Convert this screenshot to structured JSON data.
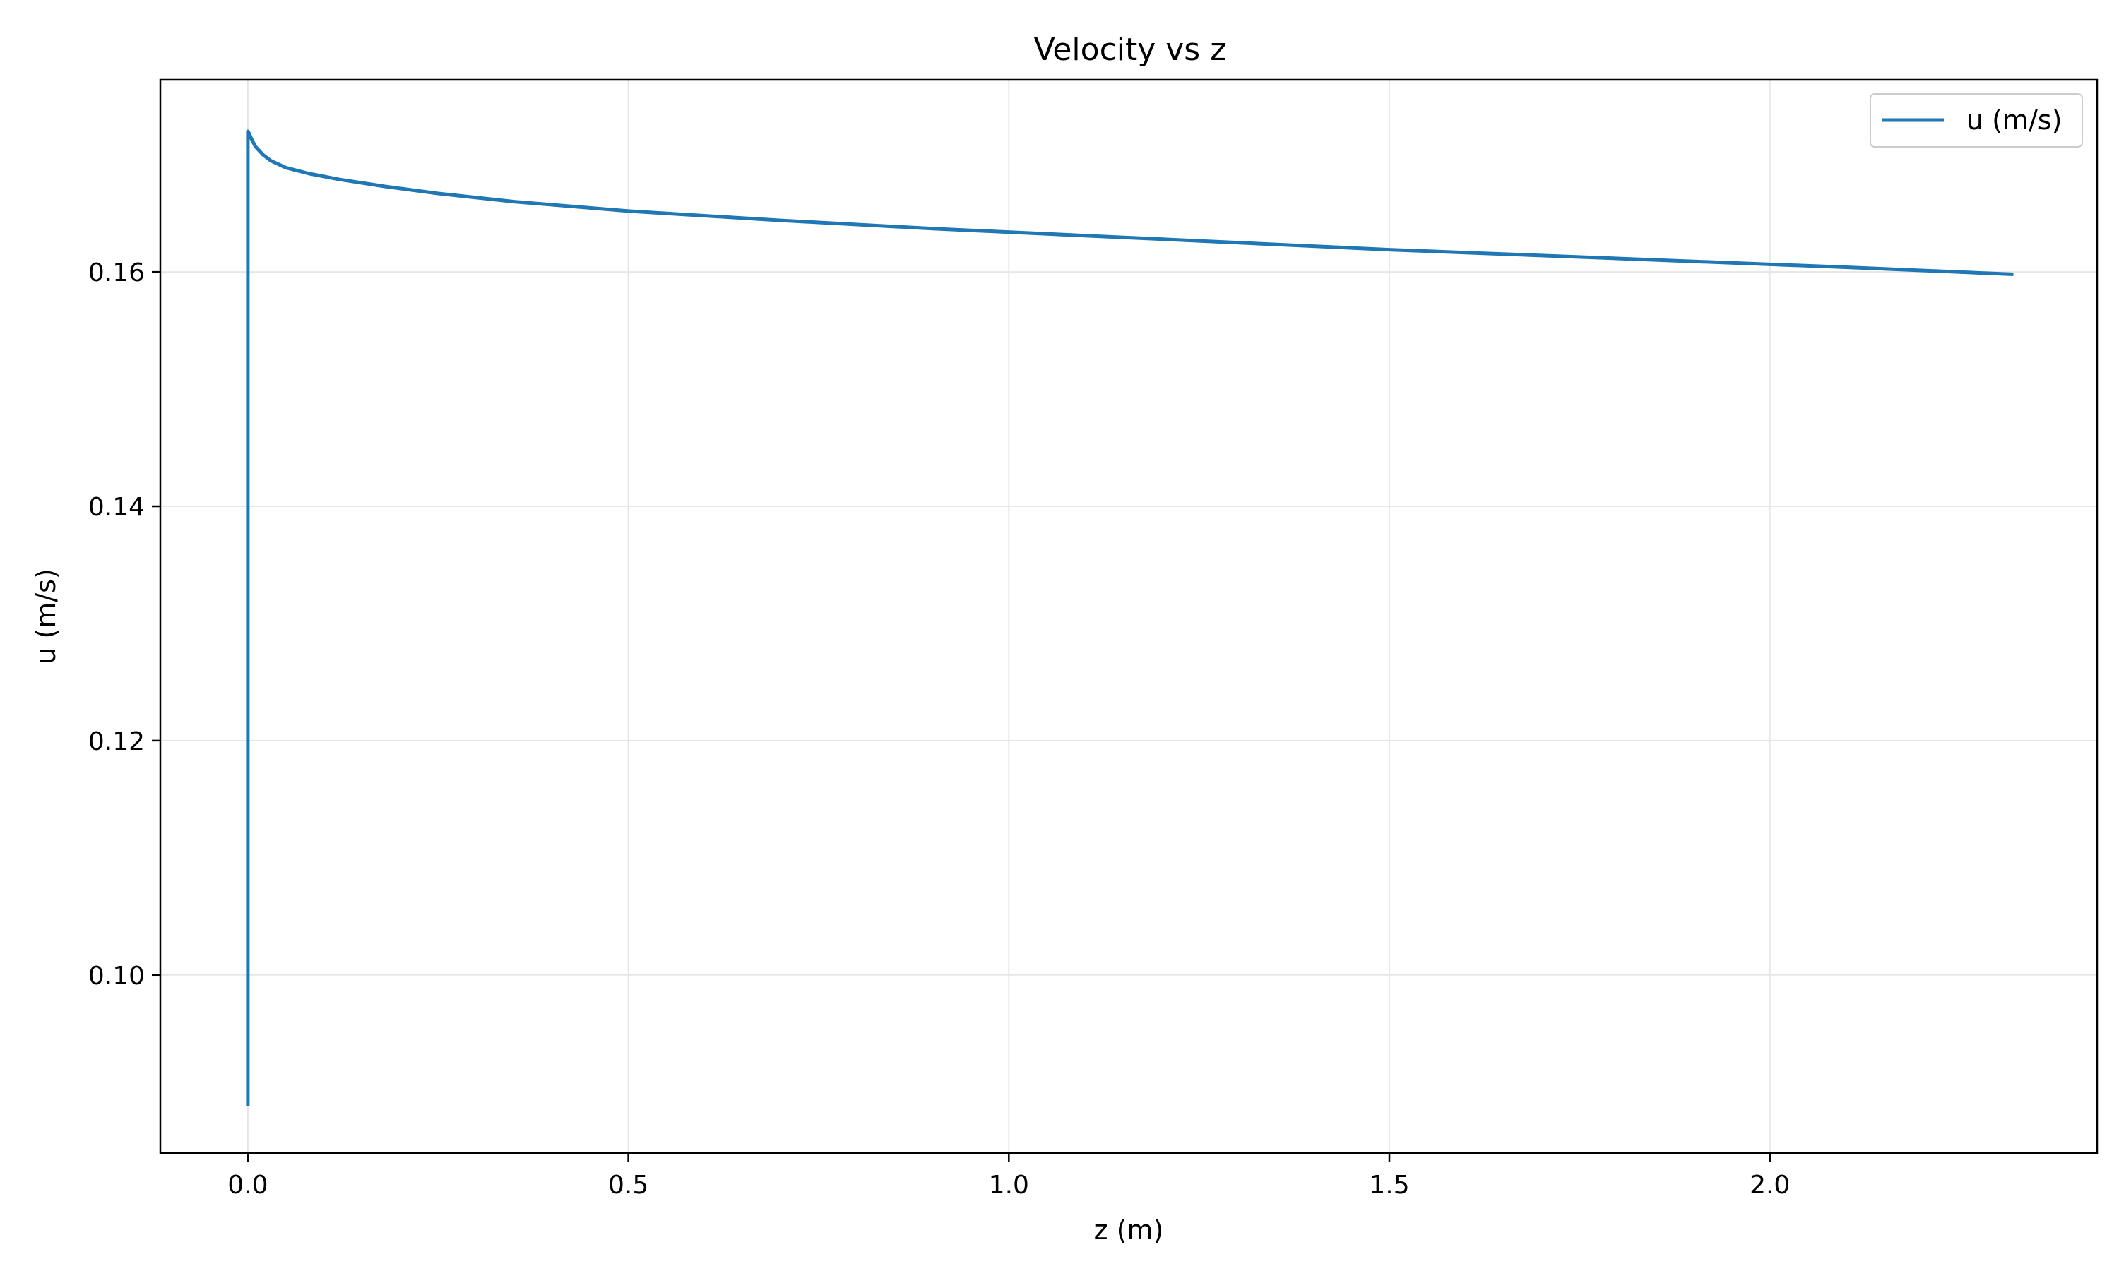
{
  "chart_data": {
    "type": "line",
    "title": "Velocity vs z",
    "xlabel": "z (m)",
    "ylabel": "u (m/s)",
    "xlim": [
      -0.115,
      2.43
    ],
    "ylim": [
      0.0848,
      0.1764
    ],
    "xticks": [
      {
        "value": 0.0,
        "label": "0.0"
      },
      {
        "value": 0.5,
        "label": "0.5"
      },
      {
        "value": 1.0,
        "label": "1.0"
      },
      {
        "value": 1.5,
        "label": "1.5"
      },
      {
        "value": 2.0,
        "label": "2.0"
      }
    ],
    "yticks": [
      {
        "value": 0.1,
        "label": "0.10"
      },
      {
        "value": 0.12,
        "label": "0.12"
      },
      {
        "value": 0.14,
        "label": "0.14"
      },
      {
        "value": 0.16,
        "label": "0.16"
      }
    ],
    "grid": true,
    "legend_position": "top-right",
    "series": [
      {
        "name": "u (m/s)",
        "color": "#1f77b4",
        "x": [
          0.0,
          0.0,
          0.001,
          0.003,
          0.006,
          0.01,
          0.02,
          0.03,
          0.05,
          0.08,
          0.12,
          0.18,
          0.25,
          0.35,
          0.5,
          0.7,
          0.9,
          1.1,
          1.3,
          1.5,
          1.7,
          1.9,
          2.1,
          2.32
        ],
        "y": [
          0.0888,
          0.172,
          0.1719,
          0.1716,
          0.1712,
          0.1707,
          0.17,
          0.1695,
          0.1689,
          0.1684,
          0.1679,
          0.1673,
          0.1667,
          0.166,
          0.1652,
          0.1644,
          0.1637,
          0.1631,
          0.1625,
          0.1619,
          0.1614,
          0.1609,
          0.1604,
          0.1598
        ]
      }
    ]
  }
}
